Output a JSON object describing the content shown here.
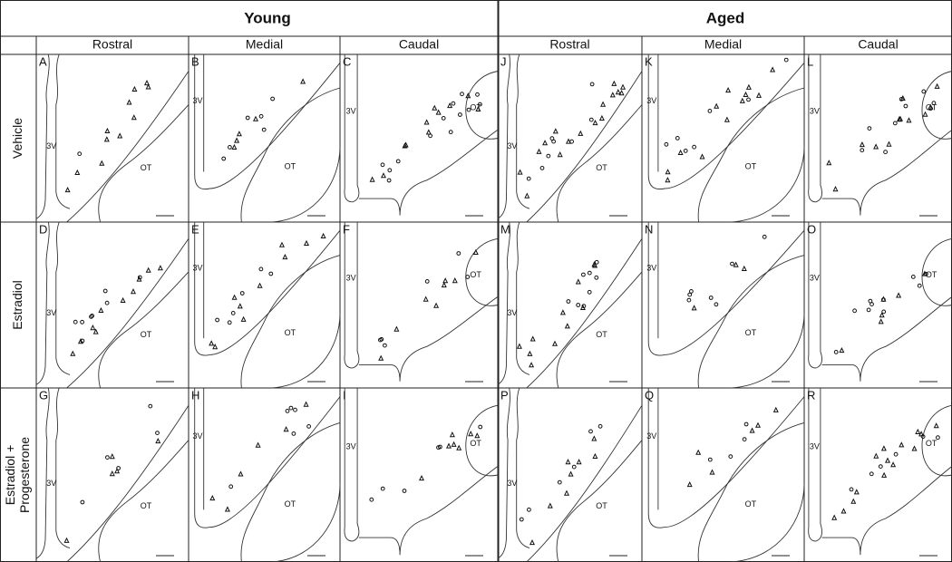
{
  "header": {
    "groups": [
      "Young",
      "Aged"
    ],
    "regions": [
      "Rostral",
      "Medial",
      "Caudal",
      "Rostral",
      "Medial",
      "Caudal"
    ]
  },
  "rows": [
    [
      "Vehicle"
    ],
    [
      "Estradiol"
    ],
    [
      "Estradiol +",
      "Progesterone"
    ]
  ],
  "panels": [
    {
      "letter": "A",
      "ventricle": "3V",
      "tract": "OT"
    },
    {
      "letter": "B",
      "ventricle": "3V",
      "tract": "OT"
    },
    {
      "letter": "C",
      "ventricle": "3V",
      "tract": "OT"
    },
    {
      "letter": "D",
      "ventricle": "3V",
      "tract": "OT"
    },
    {
      "letter": "E",
      "ventricle": "3V",
      "tract": "OT"
    },
    {
      "letter": "F",
      "ventricle": "3V",
      "tract": "OT"
    },
    {
      "letter": "G",
      "ventricle": "3V",
      "tract": "OT"
    },
    {
      "letter": "H",
      "ventricle": "3V",
      "tract": "OT"
    },
    {
      "letter": "I",
      "ventricle": "3V",
      "tract": "OT"
    },
    {
      "letter": "J",
      "ventricle": "3V",
      "tract": "OT"
    },
    {
      "letter": "K",
      "ventricle": "3V",
      "tract": "OT"
    },
    {
      "letter": "L",
      "ventricle": "3V",
      "tract": "OT"
    },
    {
      "letter": "M",
      "ventricle": "3V",
      "tract": "OT"
    },
    {
      "letter": "N",
      "ventricle": "3V",
      "tract": "OT"
    },
    {
      "letter": "O",
      "ventricle": "3V",
      "tract": "OT"
    },
    {
      "letter": "P",
      "ventricle": "3V",
      "tract": "OT"
    },
    {
      "letter": "Q",
      "ventricle": "3V",
      "tract": "OT"
    },
    {
      "letter": "R",
      "ventricle": "3V",
      "tract": "OT"
    }
  ]
}
